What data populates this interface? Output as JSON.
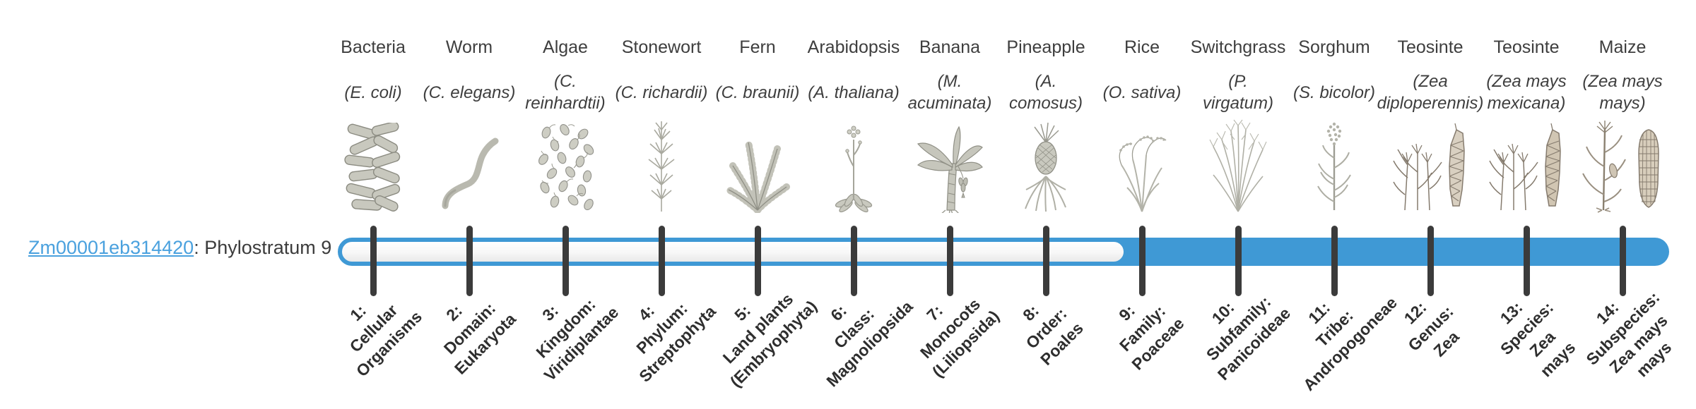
{
  "page": {
    "background": "#ffffff"
  },
  "gene": {
    "id_link": "Zm00001eb314420",
    "suffix": ": Phylostratum 9",
    "phylostratum": 9
  },
  "timeline": {
    "total_strata": 14,
    "highlight_start_stratum": 9,
    "bar_border_color": "#3f99d5",
    "bar_fill_color": "#3f99d5",
    "bar_unfilled_color": "#f5f5f5",
    "tick_color": "#3b3b3b"
  },
  "organisms": [
    {
      "key": "bacteria",
      "common": "Bacteria",
      "species": "(E. coli)",
      "icon": "bacteria-icon",
      "stratum_label": "1:\nCellular\nOrganisms",
      "in_highlight": false
    },
    {
      "key": "worm",
      "common": "Worm",
      "species": "(C. elegans)",
      "icon": "worm-icon",
      "stratum_label": "2:\nDomain:\nEukaryota",
      "in_highlight": false
    },
    {
      "key": "algae",
      "common": "Algae",
      "species": "(C.\nreinhardtii)",
      "icon": "algae-icon",
      "stratum_label": "3:\nKingdom:\nViridiplantae",
      "in_highlight": false
    },
    {
      "key": "stonewort",
      "common": "Stonewort",
      "species": "(C. richardii)",
      "icon": "stonewort-icon",
      "stratum_label": "4:\nPhylum:\nStreptophyta",
      "in_highlight": false
    },
    {
      "key": "fern",
      "common": "Fern",
      "species": "(C. braunii)",
      "icon": "fern-icon",
      "stratum_label": "5:\nLand plants\n(Embryophyta)",
      "in_highlight": false
    },
    {
      "key": "arabidopsis",
      "common": "Arabidopsis",
      "species": "(A. thaliana)",
      "icon": "arabidopsis-icon",
      "stratum_label": "6:\nClass:\nMagnoliopsida",
      "in_highlight": false
    },
    {
      "key": "banana",
      "common": "Banana",
      "species": "(M.\nacuminata)",
      "icon": "banana-icon",
      "stratum_label": "7:\nMonocots\n(Liliopsida)",
      "in_highlight": false
    },
    {
      "key": "pineapple",
      "common": "Pineapple",
      "species": "(A.\ncomosus)",
      "icon": "pineapple-icon",
      "stratum_label": "8:\nOrder:\nPoales",
      "in_highlight": false
    },
    {
      "key": "rice",
      "common": "Rice",
      "species": "(O. sativa)",
      "icon": "rice-icon",
      "stratum_label": "9:\nFamily:\nPoaceae",
      "in_highlight": true
    },
    {
      "key": "switchgrass",
      "common": "Switchgrass",
      "species": "(P.\nvirgatum)",
      "icon": "switchgrass-icon",
      "stratum_label": "10:\nSubfamily:\nPanicoideae",
      "in_highlight": true
    },
    {
      "key": "sorghum",
      "common": "Sorghum",
      "species": "(S. bicolor)",
      "icon": "sorghum-icon",
      "stratum_label": "11:\nTribe:\nAndropogoneae",
      "in_highlight": true
    },
    {
      "key": "teosinte-diploperennis",
      "common": "Teosinte",
      "species": "(Zea\ndiploperennis)",
      "icon": "teosinte-diploperennis-icon",
      "stratum_label": "12:\nGenus:\nZea",
      "in_highlight": true
    },
    {
      "key": "teosinte-mexicana",
      "common": "Teosinte",
      "species": "(Zea mays\nmexicana)",
      "icon": "teosinte-mexicana-icon",
      "stratum_label": "13:\nSpecies:\nZea\nmays",
      "in_highlight": true
    },
    {
      "key": "maize",
      "common": "Maize",
      "species": "(Zea mays\nmays)",
      "icon": "maize-icon",
      "stratum_label": "14:\nSubspecies:\nZea mays\nmays",
      "in_highlight": true
    }
  ]
}
